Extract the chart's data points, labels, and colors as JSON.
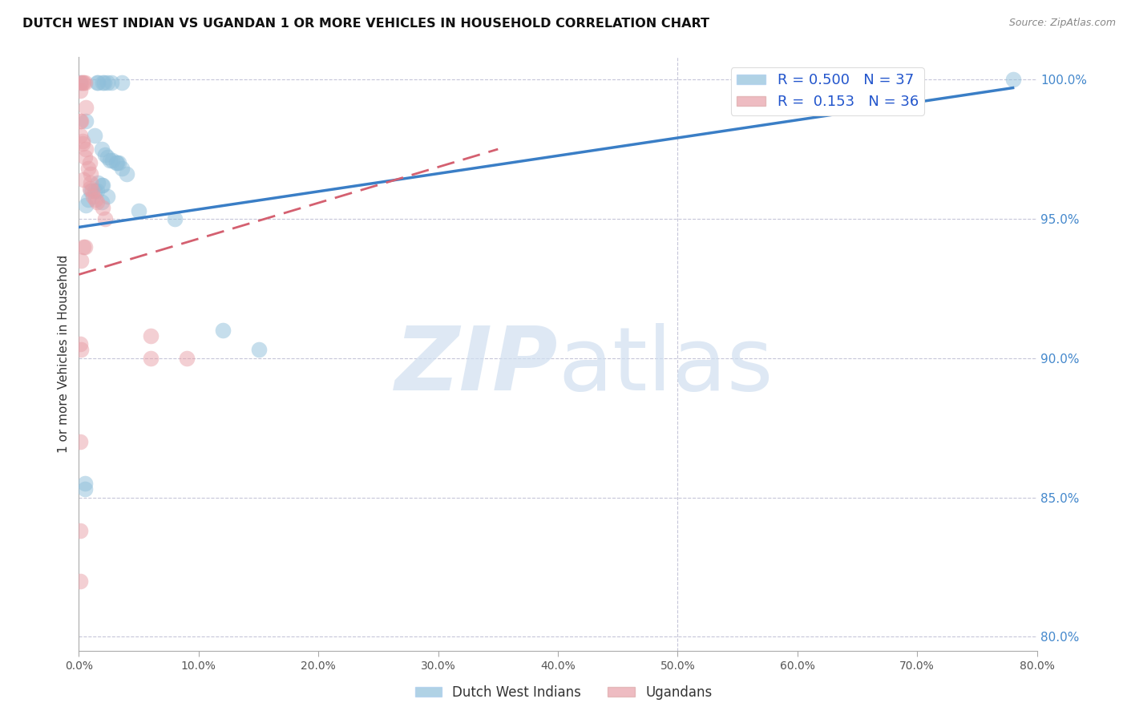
{
  "title": "DUTCH WEST INDIAN VS UGANDAN 1 OR MORE VEHICLES IN HOUSEHOLD CORRELATION CHART",
  "source": "Source: ZipAtlas.com",
  "ylabel": "1 or more Vehicles in Household",
  "xmin": 0.0,
  "xmax": 0.8,
  "ymin": 0.795,
  "ymax": 1.008,
  "right_yticks": [
    1.0,
    0.95,
    0.9,
    0.85,
    0.8
  ],
  "right_yticklabels": [
    "100.0%",
    "95.0%",
    "90.0%",
    "85.0%",
    "80.0%"
  ],
  "xticks": [
    0.0,
    0.1,
    0.2,
    0.3,
    0.4,
    0.5,
    0.6,
    0.7,
    0.8
  ],
  "blue_R": 0.5,
  "blue_N": 37,
  "pink_R": 0.153,
  "pink_N": 36,
  "legend_label_blue": "Dutch West Indians",
  "legend_label_pink": "Ugandans",
  "blue_color": "#8fbfda",
  "pink_color": "#e8a0a8",
  "blue_line_color": "#3a7ec6",
  "pink_line_color": "#d46070",
  "blue_scatter": [
    [
      0.001,
      0.999
    ],
    [
      0.015,
      0.999
    ],
    [
      0.016,
      0.999
    ],
    [
      0.02,
      0.999
    ],
    [
      0.021,
      0.999
    ],
    [
      0.024,
      0.999
    ],
    [
      0.027,
      0.999
    ],
    [
      0.036,
      0.999
    ],
    [
      0.006,
      0.985
    ],
    [
      0.013,
      0.98
    ],
    [
      0.019,
      0.975
    ],
    [
      0.022,
      0.973
    ],
    [
      0.024,
      0.972
    ],
    [
      0.026,
      0.971
    ],
    [
      0.028,
      0.971
    ],
    [
      0.031,
      0.97
    ],
    [
      0.032,
      0.97
    ],
    [
      0.033,
      0.97
    ],
    [
      0.036,
      0.968
    ],
    [
      0.04,
      0.966
    ],
    [
      0.016,
      0.963
    ],
    [
      0.019,
      0.962
    ],
    [
      0.02,
      0.962
    ],
    [
      0.01,
      0.96
    ],
    [
      0.013,
      0.96
    ],
    [
      0.015,
      0.96
    ],
    [
      0.024,
      0.958
    ],
    [
      0.008,
      0.957
    ],
    [
      0.019,
      0.956
    ],
    [
      0.006,
      0.955
    ],
    [
      0.05,
      0.953
    ],
    [
      0.08,
      0.95
    ],
    [
      0.12,
      0.91
    ],
    [
      0.15,
      0.903
    ],
    [
      0.005,
      0.855
    ],
    [
      0.005,
      0.853
    ],
    [
      0.78,
      1.0
    ]
  ],
  "pink_scatter": [
    [
      0.002,
      0.999
    ],
    [
      0.003,
      0.999
    ],
    [
      0.004,
      0.999
    ],
    [
      0.005,
      0.999
    ],
    [
      0.001,
      0.996
    ],
    [
      0.006,
      0.99
    ],
    [
      0.001,
      0.985
    ],
    [
      0.002,
      0.985
    ],
    [
      0.001,
      0.98
    ],
    [
      0.003,
      0.978
    ],
    [
      0.003,
      0.977
    ],
    [
      0.006,
      0.975
    ],
    [
      0.005,
      0.972
    ],
    [
      0.009,
      0.97
    ],
    [
      0.008,
      0.968
    ],
    [
      0.01,
      0.966
    ],
    [
      0.004,
      0.964
    ],
    [
      0.01,
      0.963
    ],
    [
      0.009,
      0.961
    ],
    [
      0.011,
      0.96
    ],
    [
      0.012,
      0.958
    ],
    [
      0.014,
      0.957
    ],
    [
      0.015,
      0.956
    ],
    [
      0.02,
      0.954
    ],
    [
      0.022,
      0.95
    ],
    [
      0.004,
      0.94
    ],
    [
      0.005,
      0.94
    ],
    [
      0.002,
      0.935
    ],
    [
      0.001,
      0.905
    ],
    [
      0.002,
      0.903
    ],
    [
      0.001,
      0.87
    ],
    [
      0.06,
      0.908
    ],
    [
      0.06,
      0.9
    ],
    [
      0.09,
      0.9
    ],
    [
      0.001,
      0.838
    ],
    [
      0.001,
      0.82
    ]
  ],
  "blue_line_x": [
    0.0,
    0.78
  ],
  "blue_line_y": [
    0.947,
    0.997
  ],
  "pink_line_x": [
    0.0,
    0.35
  ],
  "pink_line_y": [
    0.93,
    0.975
  ]
}
